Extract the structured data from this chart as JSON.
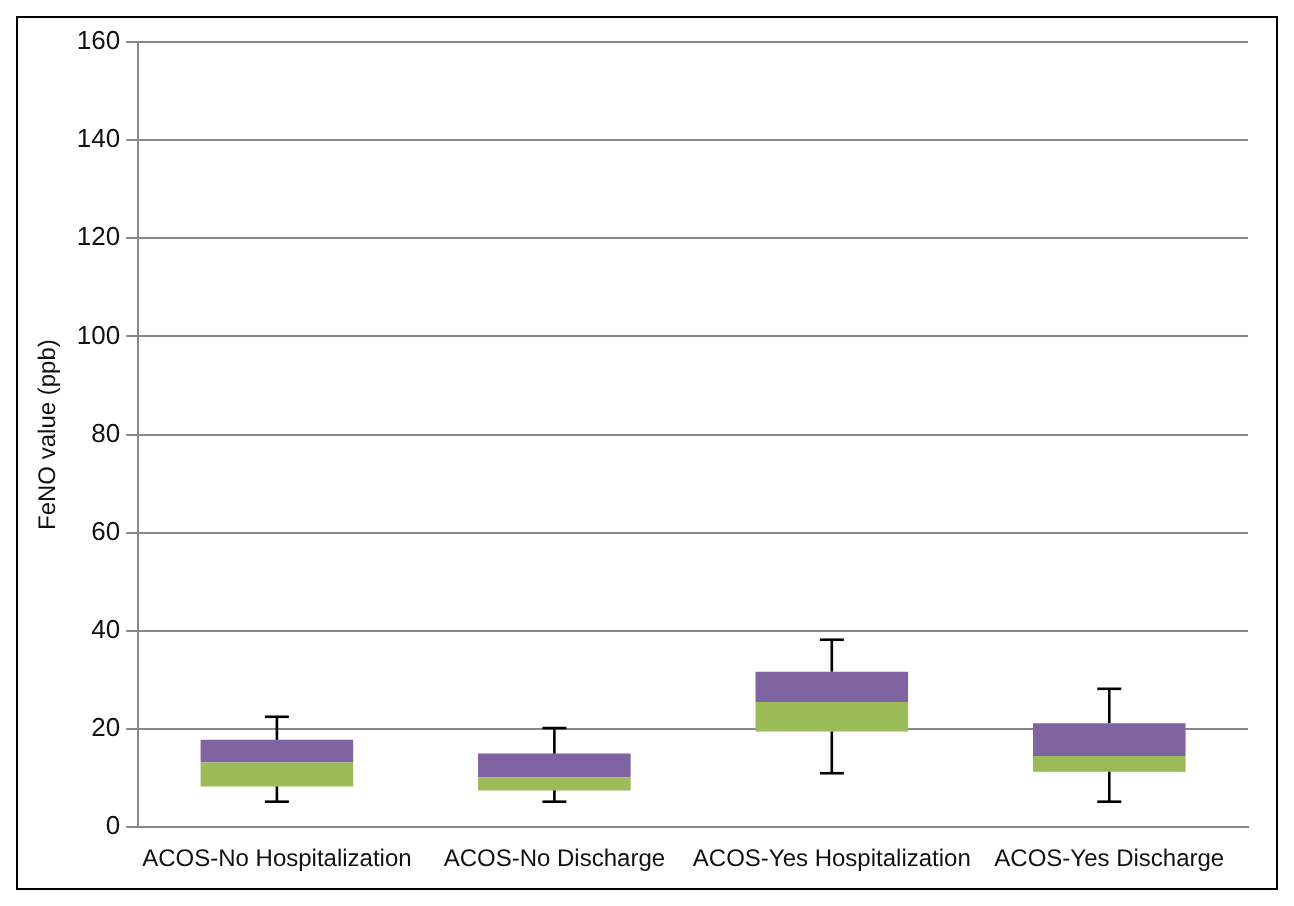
{
  "chart_data": {
    "type": "box",
    "ylabel": "FeNO value (ppb)",
    "categories": [
      "ACOS-No Hospitalization",
      "ACOS-No Discharge",
      "ACOS-Yes Hospitalization",
      "ACOS-Yes Discharge"
    ],
    "colors": [
      "#9bbb59",
      "#9bbb59",
      "#9bbb59",
      "#9bbb59"
    ],
    "color": "#8064a2",
    "boxes": [
      {
        "low": 5.2,
        "q1": 8.3,
        "median": 13.2,
        "q3": 17.8,
        "high": 22.5
      },
      {
        "low": 5.2,
        "q1": 7.5,
        "median": 10.2,
        "q3": 15,
        "high": 20.2
      },
      {
        "low": 11,
        "q1": 19.5,
        "median": 25.5,
        "q3": 31.7,
        "high": 38.2
      },
      {
        "low": 5.2,
        "q1": 11.3,
        "median": 14.5,
        "q3": 21.2,
        "high": 28.2
      }
    ],
    "ylim": [
      0,
      160
    ],
    "yticks": [
      0,
      20,
      40,
      60,
      80,
      100,
      120,
      140,
      160
    ],
    "grid": "y",
    "legend": false
  }
}
